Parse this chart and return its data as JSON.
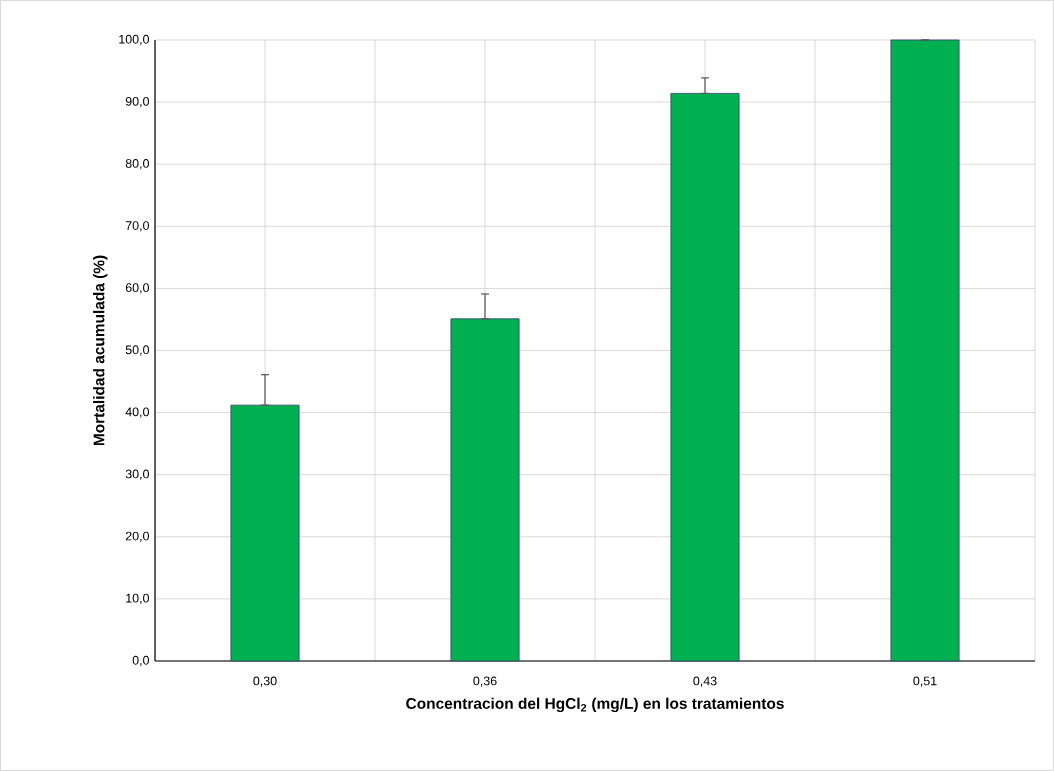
{
  "chart_data": {
    "type": "bar",
    "xlabel": "Concentracion del HgCl$_{2}$ (mg/L) en los tratamientos",
    "ylabel": "Mortalidad acumulada (%)",
    "categories": [
      "0,30",
      "0,36",
      "0,43",
      "0,51"
    ],
    "values": [
      41.2,
      55.1,
      91.4,
      100
    ],
    "errors": [
      [
        41.2,
        46.1
      ],
      [
        55.1,
        59.1
      ],
      [
        91.4,
        93.9
      ],
      null
    ],
    "color": "#00b050",
    "ylim": [
      0,
      100
    ],
    "yticks": [
      {
        "value": 0,
        "label": "0,0"
      },
      {
        "value": 10,
        "label": "10,0"
      },
      {
        "value": 20,
        "label": "20,0"
      },
      {
        "value": 30,
        "label": "30,0"
      },
      {
        "value": 40,
        "label": "40,0"
      },
      {
        "value": 50,
        "label": "50,0"
      },
      {
        "value": 60,
        "label": "60,0"
      },
      {
        "value": 70,
        "label": "70,0"
      },
      {
        "value": 80,
        "label": "80,0"
      },
      {
        "value": 90,
        "label": "90,0"
      },
      {
        "value": 100,
        "label": "100,0"
      }
    ],
    "grid": true
  }
}
